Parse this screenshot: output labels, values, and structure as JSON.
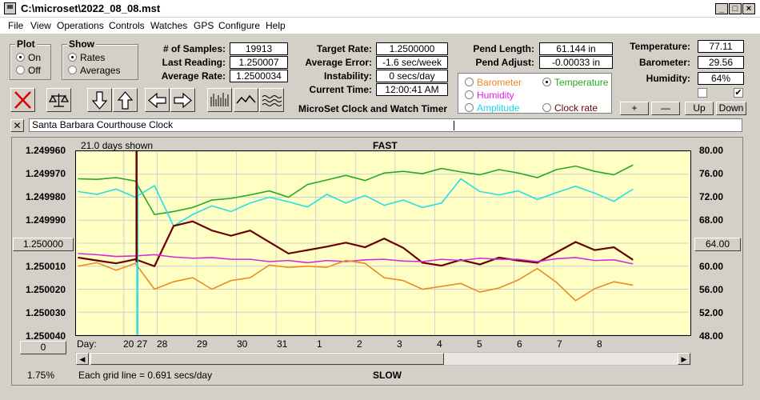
{
  "window": {
    "title": "C:\\microset\\2022_08_08.mst"
  },
  "menu": [
    "File",
    "View",
    "Operations",
    "Controls",
    "Watches",
    "GPS",
    "Configure",
    "Help"
  ],
  "plot_group": {
    "title": "Plot",
    "on": "On",
    "off": "Off"
  },
  "show_group": {
    "title": "Show",
    "rates": "Rates",
    "averages": "Averages"
  },
  "stats": {
    "samples_label": "# of Samples:",
    "samples": "19913",
    "last_label": "Last Reading:",
    "last": "1.250007",
    "avg_label": "Average Rate:",
    "avg": "1.2500034"
  },
  "rates": {
    "target_label": "Target Rate:",
    "target": "1.2500000",
    "error_label": "Average Error:",
    "error": "-1.6 sec/week",
    "instab_label": "Instability:",
    "instab": "0 secs/day",
    "time_label": "Current Time:",
    "time": "12:00:41 AM"
  },
  "pend": {
    "length_label": "Pend Length:",
    "length": "61.144 in",
    "adjust_label": "Pend Adjust:",
    "adjust": "-0.00033 in"
  },
  "env": {
    "temp_label": "Temperature:",
    "temp": "77.11",
    "baro_label": "Barometer:",
    "baro": "29.56",
    "hum_label": "Humidity:",
    "hum": "64%"
  },
  "sensor_options": {
    "barometer": "Barometer",
    "temperature": "Temperature",
    "humidity": "Humidity",
    "amplitude": "Amplitude",
    "clock_rate": "Clock rate"
  },
  "adjust_buttons": {
    "plus": "+",
    "minus": "—",
    "up": "Up",
    "down": "Down"
  },
  "app_name": "MicroSet Clock and Watch Timer",
  "clock_name": "Santa Barbara Courthouse Clock",
  "chart_labels": {
    "days_shown": "21.0 days shown",
    "fast": "FAST",
    "slow": "SLOW",
    "day_label": "Day:",
    "grid_note": "Each grid line = 0.691 secs/day",
    "percent": "1.75%",
    "left_button": "1.250000",
    "right_button": "64.00",
    "bottom_button": "0"
  },
  "colors": {
    "temperature": "#22aa22",
    "amplitude": "#22e0e8",
    "rate": "#6a0000",
    "humidity": "#dd22dd",
    "barometer": "#ee8822"
  },
  "chart_data": {
    "type": "line",
    "y_left_ticks": [
      "1.249960",
      "1.249970",
      "1.249980",
      "1.249990",
      "1.250000",
      "1.250010",
      "1.250020",
      "1.250030",
      "1.250040"
    ],
    "y_right_ticks": [
      "80.00",
      "76.00",
      "72.00",
      "68.00",
      "64.00",
      "60.00",
      "56.00",
      "52.00",
      "48.00"
    ],
    "x_ticks": [
      "20",
      "27",
      "28",
      "29",
      "30",
      "31",
      "1",
      "2",
      "3",
      "4",
      "5",
      "6",
      "7",
      "8"
    ],
    "ylim_right": [
      48,
      80
    ],
    "series": [
      {
        "name": "Temperature",
        "color": "#22aa22",
        "values": [
          75.2,
          75.1,
          75.4,
          74.8,
          69.0,
          69.5,
          70.2,
          71.5,
          71.8,
          72.4,
          73.1,
          72.0,
          74.2,
          75.0,
          75.8,
          74.9,
          76.2,
          76.5,
          76.1,
          77.0,
          76.4,
          75.9,
          76.8,
          76.2,
          75.4,
          76.8,
          77.4,
          76.5,
          75.9,
          77.6
        ]
      },
      {
        "name": "Amplitude",
        "color": "#22e0e8",
        "values": [
          73.0,
          72.5,
          73.4,
          72.0,
          74.0,
          67.0,
          69.0,
          70.5,
          69.5,
          71.0,
          72.0,
          71.2,
          70.3,
          72.5,
          71.0,
          72.3,
          70.6,
          71.5,
          70.2,
          71.0,
          75.2,
          73.0,
          72.4,
          73.1,
          71.6,
          72.8,
          73.9,
          72.7,
          71.3,
          73.4
        ]
      },
      {
        "name": "Clock rate",
        "color": "#6a0000",
        "values": [
          61.5,
          61.0,
          60.5,
          61.2,
          60.0,
          67.0,
          67.8,
          66.2,
          65.3,
          66.2,
          64.2,
          62.2,
          62.8,
          63.4,
          64.1,
          63.3,
          64.8,
          63.2,
          60.6,
          60.1,
          61.1,
          60.3,
          61.5,
          61.0,
          60.6,
          62.4,
          64.2,
          62.8,
          63.3,
          61.1
        ]
      },
      {
        "name": "Humidity",
        "color": "#dd22dd",
        "values": [
          62.2,
          62.0,
          61.7,
          61.8,
          62.0,
          61.6,
          61.4,
          61.5,
          61.2,
          61.2,
          60.8,
          61.0,
          60.6,
          61.0,
          60.8,
          61.1,
          61.2,
          60.9,
          60.8,
          61.2,
          61.0,
          61.4,
          61.2,
          61.2,
          60.8,
          61.3,
          61.5,
          61.0,
          61.1,
          60.4
        ]
      },
      {
        "name": "Barometer",
        "color": "#ee8822",
        "values": [
          60.0,
          60.6,
          59.3,
          60.5,
          56.0,
          57.3,
          58.0,
          56.0,
          57.5,
          58.0,
          60.2,
          59.8,
          60.0,
          59.8,
          61.0,
          60.5,
          58.0,
          57.5,
          56.0,
          56.5,
          57.0,
          55.5,
          56.2,
          57.6,
          59.6,
          57.2,
          54.0,
          56.1,
          57.3,
          56.7
        ]
      }
    ]
  }
}
